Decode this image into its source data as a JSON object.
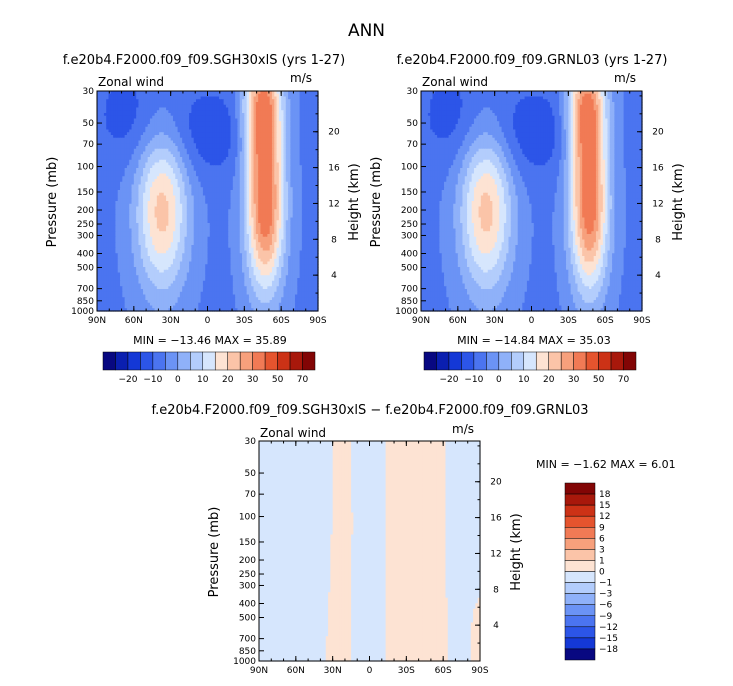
{
  "figure_title": "ANN",
  "axis_common": {
    "field_label": "Zonal wind",
    "units": "m/s",
    "ylabel": "Pressure (mb)",
    "right_label": "Height (km)",
    "x_ticks": [
      "90N",
      "60N",
      "30N",
      "0",
      "30S",
      "60S",
      "90S"
    ],
    "p_ticks": [
      "30",
      "50",
      "70",
      "100",
      "150",
      "200",
      "250",
      "300",
      "400",
      "500",
      "700",
      "850",
      "1000"
    ],
    "h_ticks": [
      "4",
      "8",
      "12",
      "16",
      "20"
    ]
  },
  "panels": [
    {
      "title": "f.e20b4.F2000.f09_f09.SGH30xlS (yrs 1-27)",
      "stats_text": "MIN = −13.46    MAX =  35.89"
    },
    {
      "title": "f.e20b4.F2000.f09_f09.GRNL03 (yrs 1-27)",
      "stats_text": "MIN = −14.84    MAX =  35.03"
    },
    {
      "title": "f.e20b4.F2000.f09_f09.SGH30xlS − f.e20b4.F2000.f09_f09.GRNL03",
      "stats_text": "MIN =    −1.62   MAX =    6.01"
    }
  ],
  "colorbars": {
    "absolute": {
      "labels": [
        "−20",
        "−10",
        "0",
        "10",
        "20",
        "30",
        "50",
        "70"
      ],
      "colors": [
        "#080881",
        "#0a1fb0",
        "#1438d6",
        "#2c55e8",
        "#4b74f0",
        "#6b93f5",
        "#8fb1f9",
        "#b3cdfc",
        "#d6e6fd",
        "#fde3d3",
        "#fbc4a8",
        "#f7a07c",
        "#f17a55",
        "#e5542e",
        "#cc3216",
        "#a8180b",
        "#820505"
      ]
    },
    "difference": {
      "labels": [
        "18",
        "15",
        "12",
        "9",
        "6",
        "3",
        "1",
        "0",
        "−1",
        "−3",
        "−6",
        "−9",
        "−12",
        "−15",
        "−18"
      ],
      "colors": [
        "#820505",
        "#a8180b",
        "#cc3216",
        "#e5542e",
        "#f17a55",
        "#f7a07c",
        "#fbc4a8",
        "#fde3d3",
        "#d6e6fd",
        "#b3cdfc",
        "#8fb1f9",
        "#6b93f5",
        "#4b74f0",
        "#2c55e8",
        "#1438d6",
        "#080881"
      ]
    }
  },
  "chart_data": [
    {
      "type": "heatmap",
      "title": "f.e20b4.F2000.f09_f09.SGH30xlS (yrs 1-27)",
      "variable": "Zonal wind",
      "units": "m/s",
      "xlabel": "",
      "ylabel": "Pressure (mb)",
      "x": [
        90,
        60,
        30,
        0,
        -30,
        -60,
        -90
      ],
      "x_labels": [
        "90N",
        "60N",
        "30N",
        "0",
        "30S",
        "60S",
        "90S"
      ],
      "y_pressure": [
        30,
        50,
        70,
        100,
        150,
        200,
        250,
        300,
        400,
        500,
        700,
        850,
        1000
      ],
      "y_scale": "log",
      "min": -13.46,
      "max": 35.89,
      "jets": [
        {
          "lat": 37,
          "p": 200,
          "peak": 22
        },
        {
          "lat": -47,
          "p": 200,
          "peak": 34
        },
        {
          "lat": -45,
          "p": 40,
          "peak": 30
        }
      ]
    },
    {
      "type": "heatmap",
      "title": "f.e20b4.F2000.f09_f09.GRNL03 (yrs 1-27)",
      "variable": "Zonal wind",
      "units": "m/s",
      "xlabel": "",
      "ylabel": "Pressure (mb)",
      "x": [
        90,
        60,
        30,
        0,
        -30,
        -60,
        -90
      ],
      "x_labels": [
        "90N",
        "60N",
        "30N",
        "0",
        "30S",
        "60S",
        "90S"
      ],
      "y_pressure": [
        30,
        50,
        70,
        100,
        150,
        200,
        250,
        300,
        400,
        500,
        700,
        850,
        1000
      ],
      "y_scale": "log",
      "min": -14.84,
      "max": 35.03,
      "jets": [
        {
          "lat": 37,
          "p": 200,
          "peak": 22
        },
        {
          "lat": -47,
          "p": 200,
          "peak": 33
        },
        {
          "lat": -45,
          "p": 40,
          "peak": 29
        }
      ]
    },
    {
      "type": "heatmap",
      "title": "f.e20b4.F2000.f09_f09.SGH30xlS − f.e20b4.F2000.f09_f09.GRNL03",
      "variable": "Zonal wind",
      "units": "m/s",
      "xlabel": "",
      "ylabel": "Pressure (mb)",
      "x": [
        90,
        60,
        30,
        0,
        -30,
        -60,
        -90
      ],
      "x_labels": [
        "90N",
        "60N",
        "30N",
        "0",
        "30S",
        "60S",
        "90S"
      ],
      "y_pressure": [
        30,
        50,
        70,
        100,
        150,
        200,
        250,
        300,
        400,
        500,
        700,
        850,
        1000
      ],
      "y_scale": "log",
      "min": -1.62,
      "max": 6.01
    }
  ]
}
